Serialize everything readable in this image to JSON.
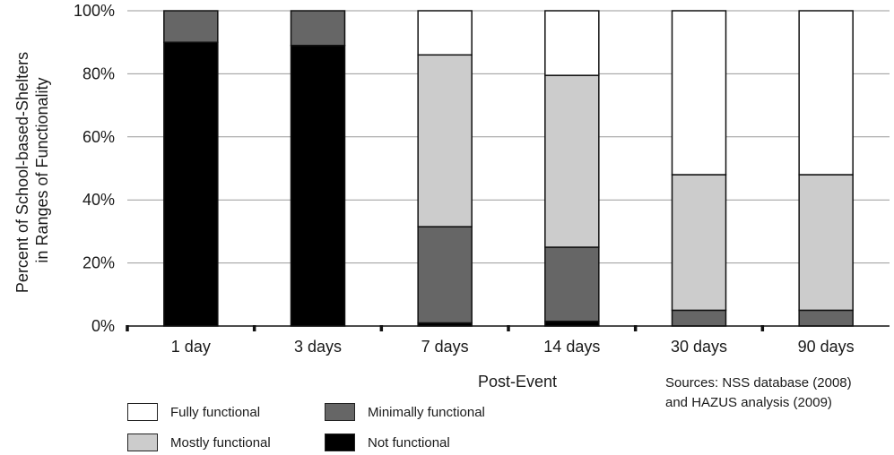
{
  "chart_data": {
    "type": "bar",
    "stacked": true,
    "categories": [
      "1 day",
      "3 days",
      "7 days",
      "14 days",
      "30 days",
      "90 days"
    ],
    "series": [
      {
        "name": "Not functional",
        "color": "#000000",
        "values": [
          90,
          89,
          1,
          1.5,
          0,
          0
        ]
      },
      {
        "name": "Minimally functional",
        "color": "#666666",
        "values": [
          10,
          11,
          30.5,
          23.5,
          5,
          5
        ]
      },
      {
        "name": "Mostly functional",
        "color": "#cccccc",
        "values": [
          0,
          0,
          54.5,
          54.5,
          43,
          43
        ]
      },
      {
        "name": "Fully functional",
        "color": "#ffffff",
        "values": [
          0,
          0,
          14,
          20.5,
          52,
          52
        ]
      }
    ],
    "xlabel": "Post-Event",
    "ylabel_lines": [
      "Percent of School-based-Shelters",
      "in Ranges of Functionality"
    ],
    "ylim": [
      0,
      100
    ],
    "yticks": [
      "0%",
      "20%",
      "40%",
      "60%",
      "80%",
      "100%"
    ],
    "grid": "horizontal",
    "legend_order": [
      "Fully functional",
      "Minimally functional",
      "Mostly functional",
      "Not functional"
    ]
  },
  "note": {
    "line1": "Sources: NSS database (2008)",
    "line2": "and HAZUS analysis (2009)"
  }
}
